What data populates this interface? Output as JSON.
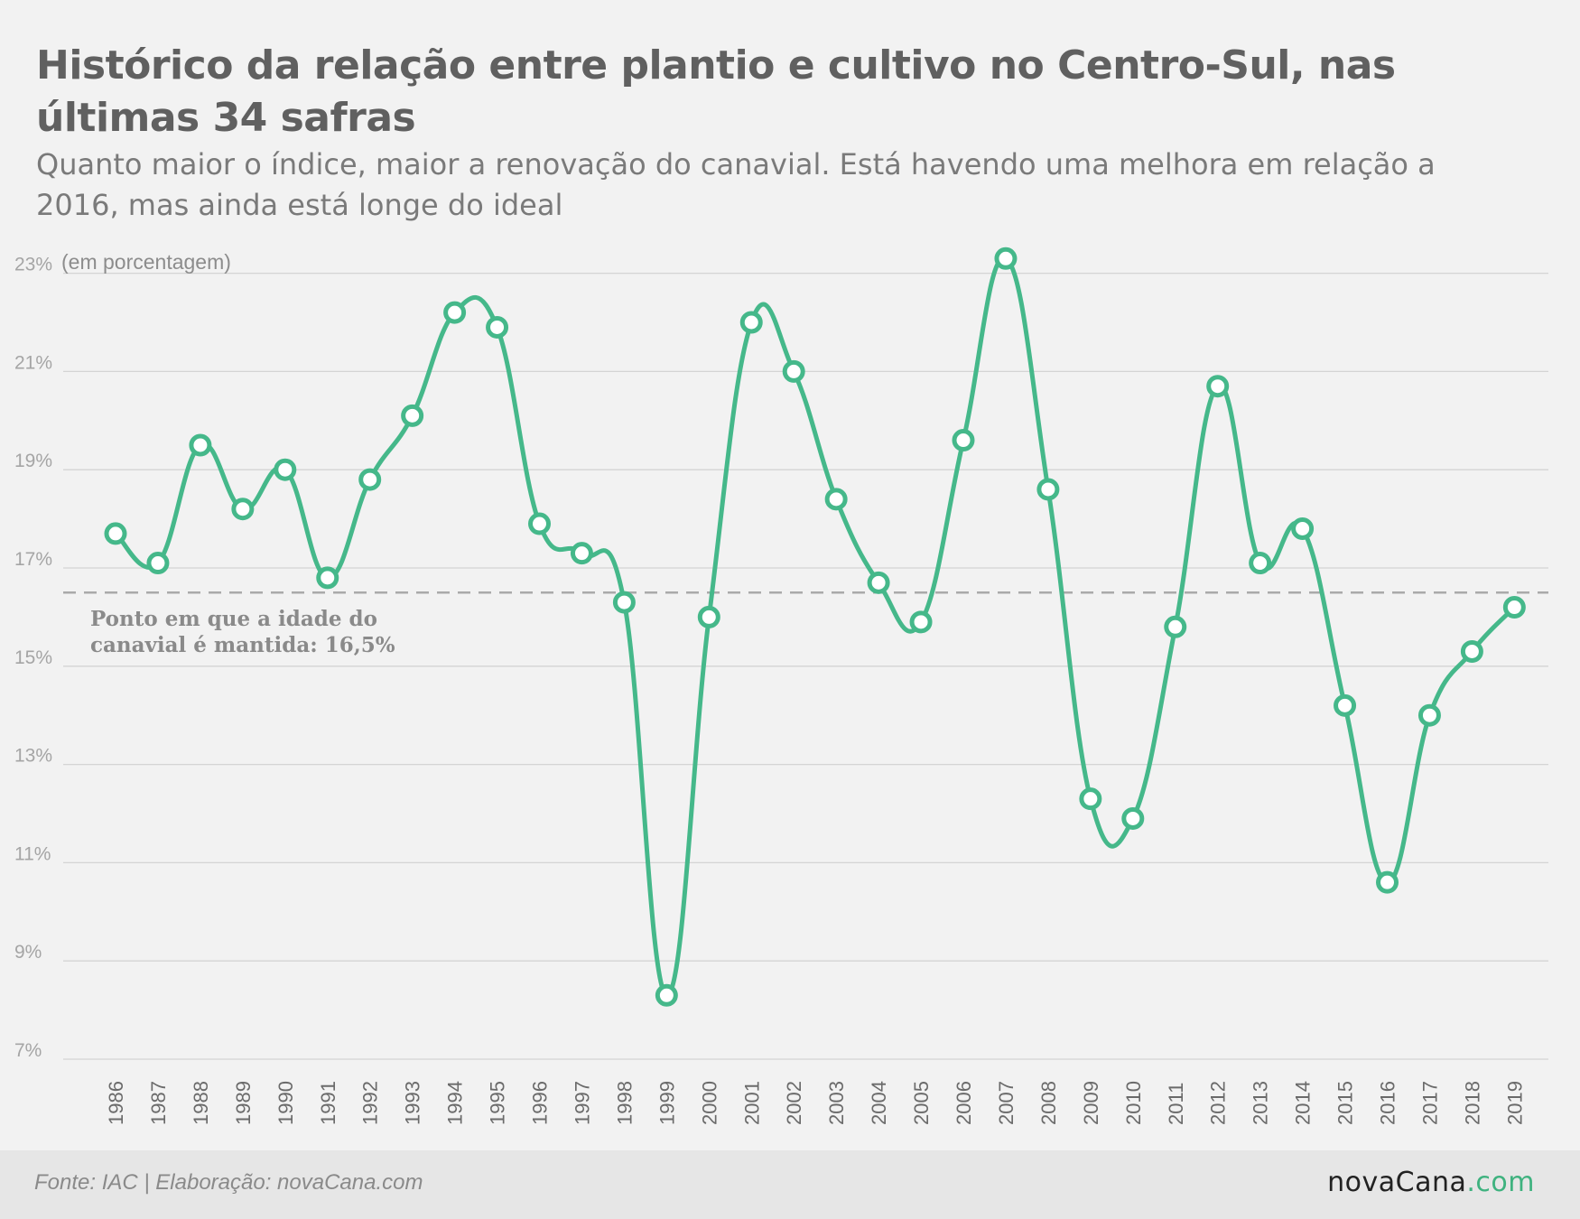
{
  "title": "Histórico da relação entre plantio e cultivo no Centro-Sul, nas últimas 34 safras",
  "subtitle": "Quanto maior o índice, maior a renovação do canavial. Está havendo uma melhora em relação a 2016, mas ainda está longe do ideal",
  "colors": {
    "line": "#45b88a",
    "marker_fill": "#ffffff",
    "grid": "#d4d4d4",
    "reference": "#aaaaaa",
    "axis_text": "#999999",
    "background": "#f2f2f2"
  },
  "chart_data": {
    "type": "line",
    "unit_label": "(em porcentagem)",
    "x": [
      "1986",
      "1987",
      "1988",
      "1989",
      "1990",
      "1991",
      "1992",
      "1993",
      "1994",
      "1995",
      "1996",
      "1997",
      "1998",
      "1999",
      "2000",
      "2001",
      "2002",
      "2003",
      "2004",
      "2005",
      "2006",
      "2007",
      "2008",
      "2009",
      "2010",
      "2011",
      "2012",
      "2013",
      "2014",
      "2015",
      "2016",
      "2017",
      "2018",
      "2019"
    ],
    "series": [
      {
        "values": [
          17.7,
          17.1,
          19.5,
          18.2,
          19.0,
          16.8,
          18.8,
          20.1,
          22.2,
          21.9,
          17.9,
          17.3,
          16.3,
          8.3,
          16.0,
          22.0,
          21.0,
          18.4,
          16.7,
          15.9,
          19.6,
          23.3,
          18.6,
          12.3,
          11.9,
          15.8,
          20.7,
          17.1,
          17.8,
          14.2,
          10.6,
          14.0,
          15.3,
          16.2
        ]
      }
    ],
    "y_ticks": [
      "7%",
      "9%",
      "11%",
      "13%",
      "15%",
      "17%",
      "19%",
      "21%",
      "23%"
    ],
    "ylim": [
      7,
      23.5
    ],
    "reference_line": {
      "value": 16.5,
      "label_line1": "Ponto em que a idade do",
      "label_line2": "canavial é mantida: 16,5%"
    },
    "grid": true
  },
  "footer": {
    "source": "Fonte: IAC | Elaboração: novaCana.com",
    "brand_main": "novaCana",
    "brand_dot": ".com"
  }
}
